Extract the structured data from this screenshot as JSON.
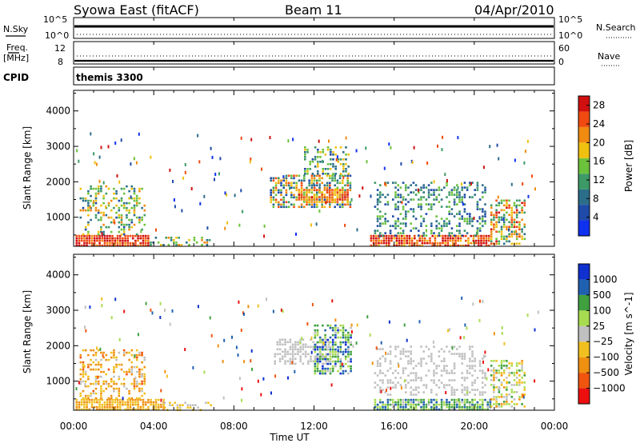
{
  "header": {
    "station": "Syowa East (fitACF)",
    "beam": "Beam 11",
    "date": "04/Apr/2010"
  },
  "top_panels": {
    "nsky_label": "N.Sky",
    "nsky_ticks": [
      "10^5",
      "10^0"
    ],
    "nsearch_label": "N.Search",
    "nsearch_ticks": [
      "10^5",
      "10^0"
    ],
    "freq_label_1": "Freq.",
    "freq_label_2": "[MHz]",
    "freq_ticks": [
      "12",
      "8"
    ],
    "nave_label": "Nave",
    "nave_ticks": [
      "60",
      "0"
    ],
    "cpid_label": "CPID",
    "cpid_value": "themis 3300"
  },
  "colors": {
    "power_scale": [
      "#1030f0",
      "#1f4aa8",
      "#2b6e8a",
      "#3d9a66",
      "#6cc23a",
      "#f0c010",
      "#f08a10",
      "#f04a10",
      "#d01010"
    ],
    "velocity_scale": [
      "#ee1010",
      "#f05510",
      "#f09010",
      "#f0c020",
      "#c0c0c0",
      "#a8dc50",
      "#40a040",
      "#2060b0",
      "#1030d0"
    ],
    "ground_scatter": "#b8b8b8"
  },
  "chart_data": [
    {
      "type": "heatmap",
      "title": "Power",
      "ylabel": "Slant Range [km]",
      "xlabel": "",
      "x_ticks": [
        "00:00",
        "04:00",
        "08:00",
        "12:00",
        "16:00",
        "20:00",
        "00:00"
      ],
      "x_range_hours": [
        0,
        24
      ],
      "y_ticks": [
        1000,
        2000,
        3000,
        4000
      ],
      "ylim": [
        180,
        4580
      ],
      "colorbar_label": "Power [dB]",
      "colorbar_ticks": [
        "4",
        "8",
        "12",
        "16",
        "20",
        "24",
        "28"
      ],
      "clim": [
        0,
        30
      ],
      "regions": [
        {
          "t0": 0.1,
          "t1": 3.8,
          "r0": 200,
          "r1": 500,
          "v0": 22,
          "v1": 30,
          "density": 0.9
        },
        {
          "t0": 0.3,
          "t1": 3.5,
          "r0": 500,
          "r1": 1900,
          "v0": 6,
          "v1": 22,
          "density": 0.35
        },
        {
          "t0": 3.8,
          "t1": 6.8,
          "r0": 200,
          "r1": 450,
          "v0": 8,
          "v1": 22,
          "density": 0.35
        },
        {
          "t0": 9.8,
          "t1": 13.8,
          "r0": 1300,
          "r1": 2200,
          "v0": 4,
          "v1": 26,
          "density": 0.6
        },
        {
          "t0": 11.2,
          "t1": 13.7,
          "r0": 1400,
          "r1": 1800,
          "v0": 16,
          "v1": 28,
          "density": 0.8
        },
        {
          "t0": 11.5,
          "t1": 13.8,
          "r0": 2200,
          "r1": 3000,
          "v0": 6,
          "v1": 20,
          "density": 0.4
        },
        {
          "t0": 14.8,
          "t1": 20.8,
          "r0": 200,
          "r1": 500,
          "v0": 18,
          "v1": 30,
          "density": 0.85
        },
        {
          "t0": 15.0,
          "t1": 20.5,
          "r0": 500,
          "r1": 2000,
          "v0": 4,
          "v1": 16,
          "density": 0.3
        },
        {
          "t0": 20.8,
          "t1": 22.5,
          "r0": 250,
          "r1": 1500,
          "v0": 8,
          "v1": 28,
          "density": 0.55
        }
      ]
    },
    {
      "type": "heatmap",
      "title": "Velocity",
      "ylabel": "Slant Range [km]",
      "xlabel": "Time UT",
      "x_ticks": [
        "00:00",
        "04:00",
        "08:00",
        "12:00",
        "16:00",
        "20:00",
        "00:00"
      ],
      "x_range_hours": [
        0,
        24
      ],
      "y_ticks": [
        1000,
        2000,
        3000,
        4000
      ],
      "ylim": [
        180,
        4580
      ],
      "colorbar_label": "Velocity [m s^-1]",
      "colorbar_ticks": [
        "1000",
        "500",
        "100",
        "25",
        "−25",
        "−100",
        "−500",
        "−1000"
      ],
      "clim": [
        -1200,
        1200
      ],
      "regions": [
        {
          "t0": 0.1,
          "t1": 4.5,
          "r0": 200,
          "r1": 500,
          "v0": -600,
          "v1": -150,
          "density": 0.85
        },
        {
          "t0": 0.3,
          "t1": 3.5,
          "r0": 500,
          "r1": 1900,
          "v0": -700,
          "v1": -50,
          "density": 0.35
        },
        {
          "t0": 4.5,
          "t1": 7.0,
          "r0": 200,
          "r1": 420,
          "v0": -400,
          "v1": 0,
          "density": 0.3
        },
        {
          "t0": 10.0,
          "t1": 12.8,
          "r0": 1500,
          "r1": 2200,
          "v0": -20,
          "v1": 20,
          "density": 0.55
        },
        {
          "t0": 12.0,
          "t1": 13.8,
          "r0": 1200,
          "r1": 2600,
          "v0": 50,
          "v1": 1100,
          "density": 0.6
        },
        {
          "t0": 15.0,
          "t1": 20.8,
          "r0": 200,
          "r1": 500,
          "v0": 50,
          "v1": 900,
          "density": 0.8
        },
        {
          "t0": 15.0,
          "t1": 20.5,
          "r0": 600,
          "r1": 2000,
          "v0": -20,
          "v1": 20,
          "density": 0.3
        },
        {
          "t0": 20.8,
          "t1": 22.5,
          "r0": 250,
          "r1": 1600,
          "v0": -500,
          "v1": 600,
          "density": 0.5
        }
      ]
    }
  ]
}
